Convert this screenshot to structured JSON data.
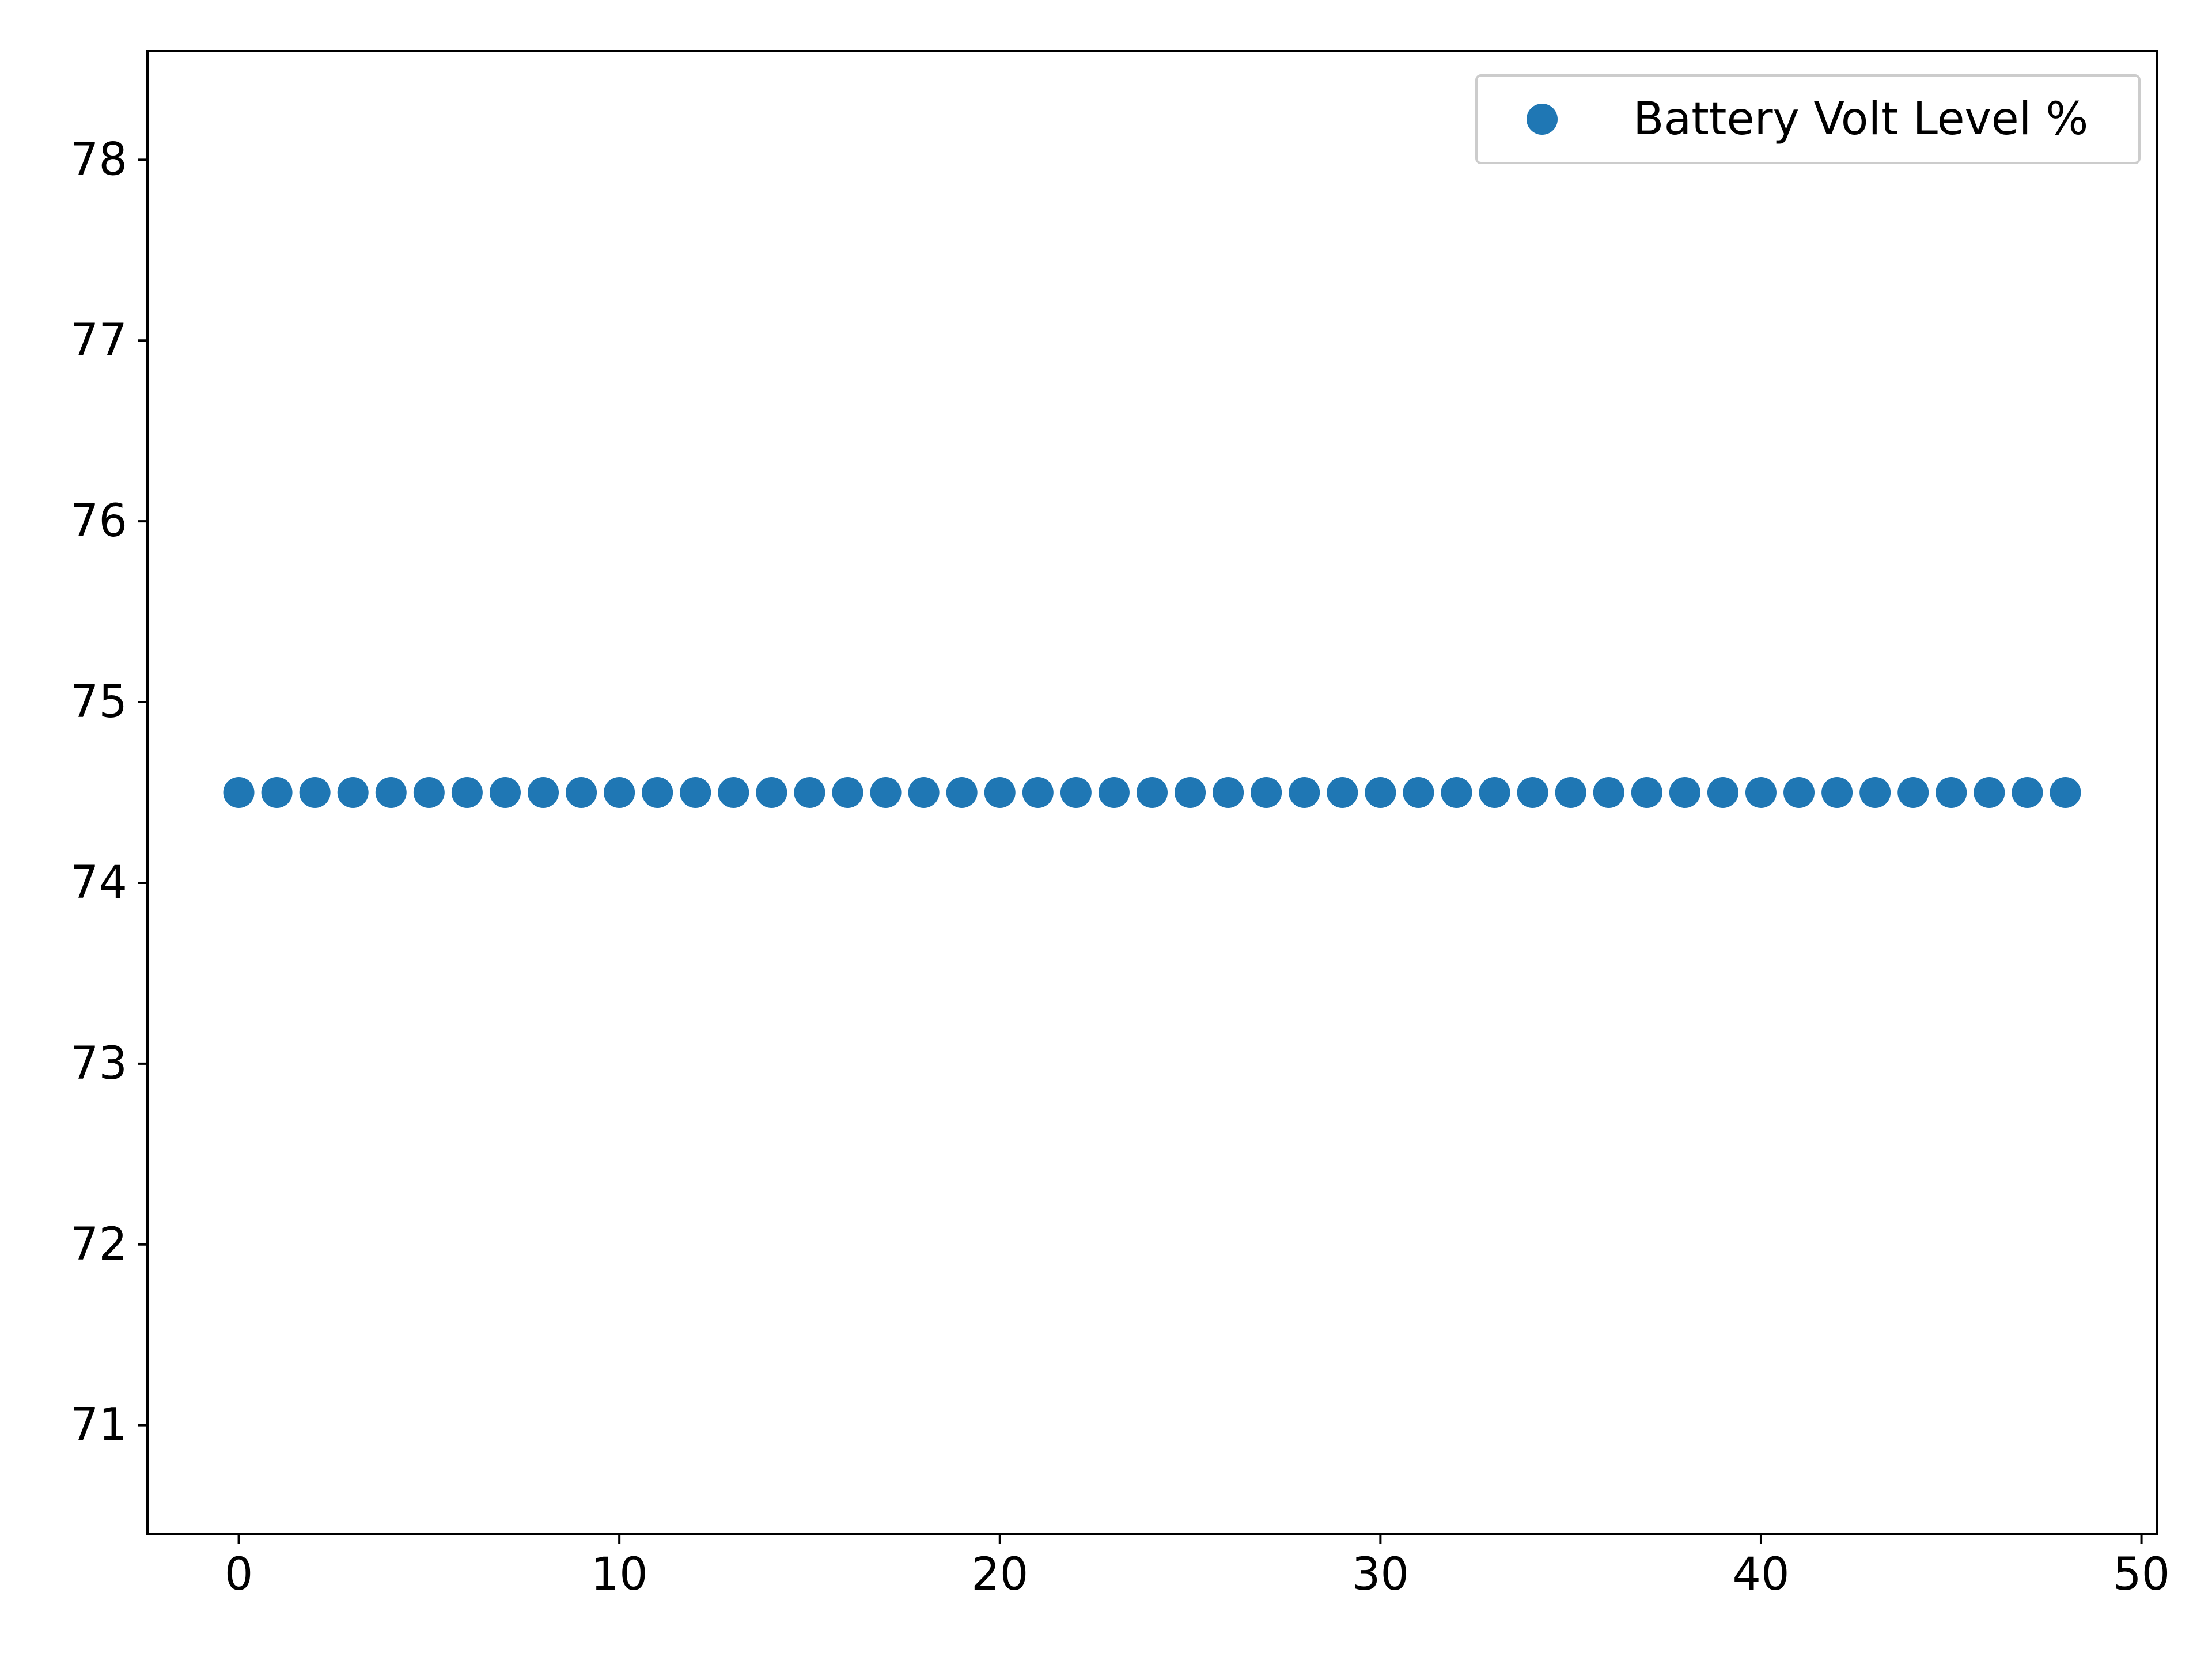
{
  "chart_data": {
    "type": "scatter",
    "title": "",
    "xlabel": "",
    "ylabel": "",
    "xlim": [
      -2.4,
      50.4
    ],
    "ylim": [
      70.4,
      78.6
    ],
    "x_ticks": [
      0,
      10,
      20,
      30,
      40,
      50
    ],
    "y_ticks": [
      71,
      72,
      73,
      74,
      75,
      76,
      77,
      78
    ],
    "grid": false,
    "legend": {
      "position": "top-right"
    },
    "series": [
      {
        "name": "Battery Volt Level %",
        "color": "#1f77b4",
        "marker": "circle",
        "x": [
          0,
          1,
          2,
          3,
          4,
          5,
          6,
          7,
          8,
          9,
          10,
          11,
          12,
          13,
          14,
          15,
          16,
          17,
          18,
          19,
          20,
          21,
          22,
          23,
          24,
          25,
          26,
          27,
          28,
          29,
          30,
          31,
          32,
          33,
          34,
          35,
          36,
          37,
          38,
          39,
          40,
          41,
          42,
          43,
          44,
          45,
          46,
          47,
          48
        ],
        "y": [
          74.5,
          74.5,
          74.5,
          74.5,
          74.5,
          74.5,
          74.5,
          74.5,
          74.5,
          74.5,
          74.5,
          74.5,
          74.5,
          74.5,
          74.5,
          74.5,
          74.5,
          74.5,
          74.5,
          74.5,
          74.5,
          74.5,
          74.5,
          74.5,
          74.5,
          74.5,
          74.5,
          74.5,
          74.5,
          74.5,
          74.5,
          74.5,
          74.5,
          74.5,
          74.5,
          74.5,
          74.5,
          74.5,
          74.5,
          74.5,
          74.5,
          74.5,
          74.5,
          74.5,
          74.5,
          74.5,
          74.5,
          74.5,
          74.5
        ]
      }
    ]
  }
}
